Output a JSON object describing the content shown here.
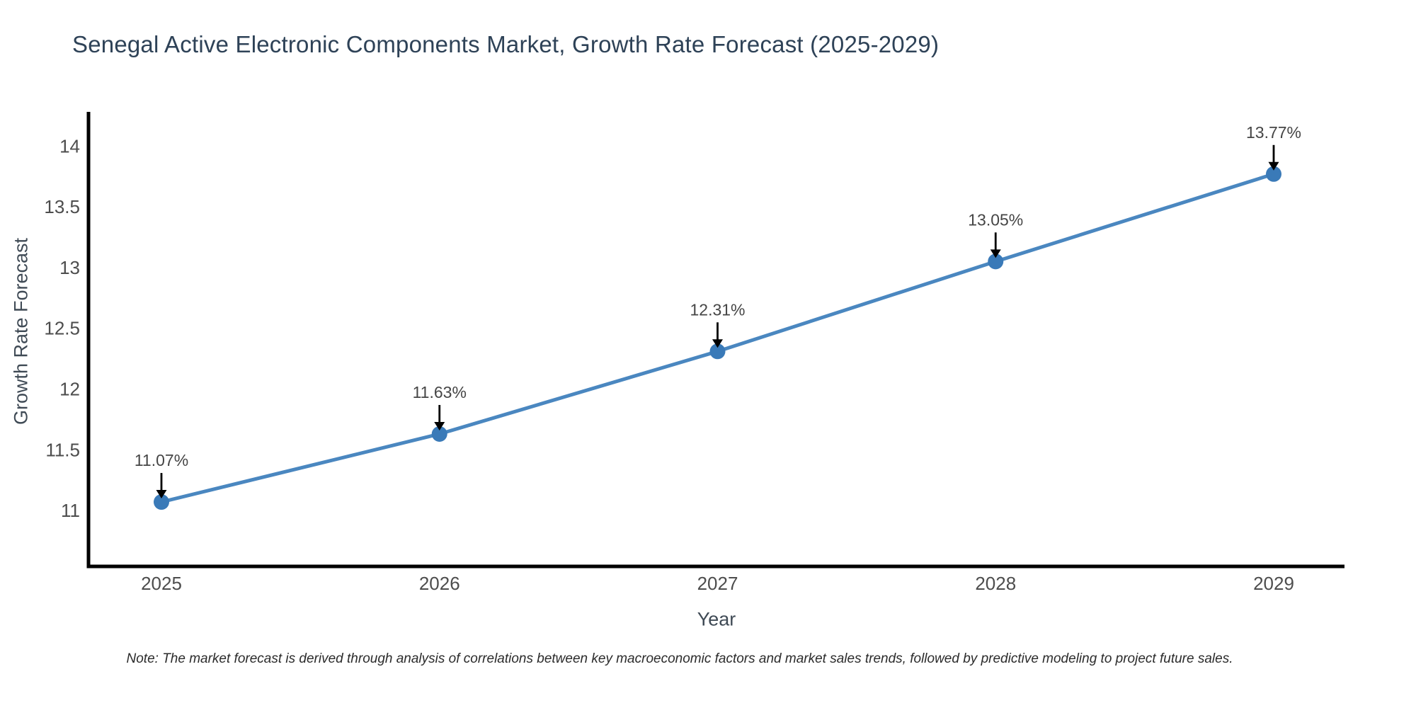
{
  "note": "Note: The market forecast is derived through analysis of correlations between key macroeconomic factors and market sales trends, followed by predictive modeling to project future sales.",
  "chart_data": {
    "type": "line",
    "title": "Senegal Active Electronic Components Market, Growth Rate Forecast (2025-2029)",
    "xlabel": "Year",
    "ylabel": "Growth Rate Forecast",
    "categories": [
      "2025",
      "2026",
      "2027",
      "2028",
      "2029"
    ],
    "values": [
      11.07,
      11.63,
      12.31,
      13.05,
      13.77
    ],
    "point_labels": [
      "11.07%",
      "11.63%",
      "12.31%",
      "13.05%",
      "13.77%"
    ],
    "series_name": "Growth Rate Forecast",
    "yticks": {
      "values": [
        11,
        11.5,
        12,
        12.5,
        13,
        13.5,
        14
      ],
      "labels": [
        "11",
        "11.5",
        "12",
        "12.5",
        "13",
        "13.5",
        "14"
      ]
    },
    "ylim": [
      10.54,
      14.27
    ],
    "grid": false,
    "legend": false,
    "annotation_style": "percent label above each point with black downward arrow",
    "colors": {
      "line": "#4a87c0",
      "marker": "#3a7ab8",
      "spine": "#000000",
      "arrow": "#000000",
      "tick_text": "#4d4d4d",
      "axis_title_text": "#3f4a55",
      "annotation_text": "#454545",
      "title_text": "#2e4257",
      "background": "#ffffff"
    }
  }
}
